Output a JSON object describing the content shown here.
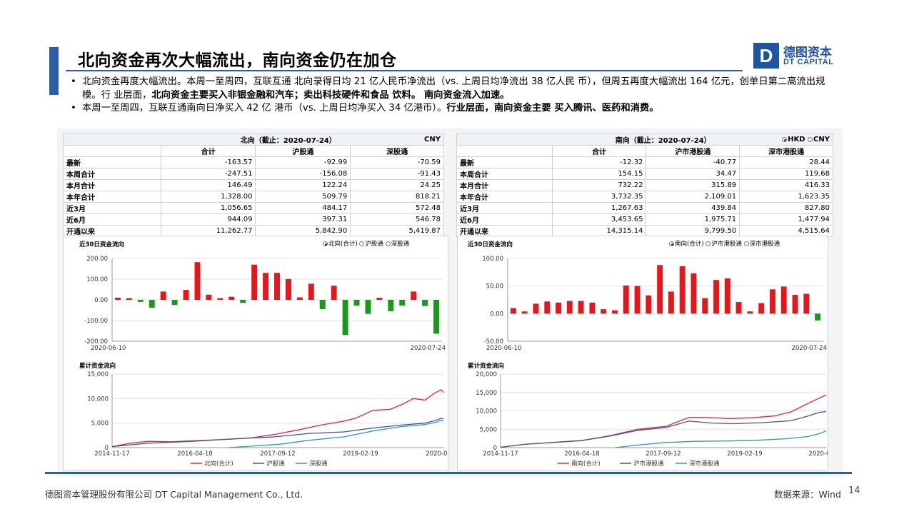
{
  "slide": {
    "title": "北向资金再次大幅流出，南向资金仍在加仓",
    "logo": {
      "mark": "D",
      "cn": "德图资本",
      "en": "DT CAPITAL"
    },
    "bullets": [
      {
        "segments": [
          {
            "text": "北向资金再度大幅流出。本周一至周四，互联互通 北向录得日均 21 亿人民币净流出（vs. 上周日均净流出 38 亿人民 币），但周五再度大幅流出 164 亿元，创单日第二高流出规模。行 业层面，",
            "bold": false
          },
          {
            "text": "北向资金主要买入非银金融和汽车；卖出科技硬件和食品 饮料。 南向资金流入加速。",
            "bold": true
          }
        ]
      },
      {
        "segments": [
          {
            "text": "本周一至周四，互联互通南向日净买入 42 亿 港币（vs. 上周日均净买入 34 亿港币）。",
            "bold": false
          },
          {
            "text": "行业层面，南向资金主要 买入腾讯、医药和消费。",
            "bold": true
          }
        ]
      }
    ],
    "footer_left": "德图资本管理股份有限公司  DT Capital Management  Co., Ltd.",
    "footer_right": "数据来源：Wind",
    "page_number": "14"
  },
  "north_table": {
    "title": "北向（截止：2020-07-24）",
    "currency": "CNY",
    "columns": [
      "合计",
      "沪股通",
      "深股通"
    ],
    "rows": [
      {
        "label": "最新",
        "values": [
          "-163.57",
          "-92.99",
          "-70.59"
        ]
      },
      {
        "label": "本周合计",
        "values": [
          "-247.51",
          "-156.08",
          "-91.43"
        ]
      },
      {
        "label": "本月合计",
        "values": [
          "146.49",
          "122.24",
          "24.25"
        ]
      },
      {
        "label": "本年合计",
        "values": [
          "1,328.00",
          "509.79",
          "818.21"
        ]
      },
      {
        "label": "近3月",
        "values": [
          "1,056.65",
          "484.17",
          "572.48"
        ]
      },
      {
        "label": "近6月",
        "values": [
          "944.09",
          "397.31",
          "546.78"
        ]
      },
      {
        "label": "开通以来",
        "values": [
          "11,262.77",
          "5,842.90",
          "5,419.87"
        ]
      }
    ]
  },
  "south_table": {
    "title": "南向（截止：2020-07-24）",
    "currency_options": [
      "HKD",
      "CNY"
    ],
    "currency_selected": "HKD",
    "columns": [
      "合计",
      "沪市港股通",
      "深市港股通"
    ],
    "rows": [
      {
        "label": "最新",
        "values": [
          "-12.32",
          "-40.77",
          "28.44"
        ]
      },
      {
        "label": "本周合计",
        "values": [
          "154.15",
          "34.47",
          "119.68"
        ]
      },
      {
        "label": "本月合计",
        "values": [
          "732.22",
          "315.89",
          "416.33"
        ]
      },
      {
        "label": "本年合计",
        "values": [
          "3,732.35",
          "2,109.01",
          "1,623.35"
        ]
      },
      {
        "label": "近3月",
        "values": [
          "1,267.63",
          "439.84",
          "827.80"
        ]
      },
      {
        "label": "近6月",
        "values": [
          "3,453.65",
          "1,975.71",
          "1,477.94"
        ]
      },
      {
        "label": "开通以来",
        "values": [
          "14,315.14",
          "9,799.50",
          "4,515.64"
        ]
      }
    ]
  },
  "north_daily_legend": {
    "title": "近30日资金流向",
    "options": [
      "北向(合计)",
      "沪股通",
      "深股通"
    ],
    "selected": "北向(合计)"
  },
  "south_daily_legend": {
    "title": "近30日资金流向",
    "options": [
      "南向(合计)",
      "沪市港股通",
      "深市港股通"
    ],
    "selected": "南向(合计)"
  },
  "north_cum_title": "累计资金流向",
  "south_cum_title": "累计资金流向",
  "chart_data": [
    {
      "id": "north_daily",
      "type": "bar",
      "x_start_label": "2020-06-10",
      "x_end_label": "2020-07-24",
      "ylim": [
        -200,
        200
      ],
      "yticks": [
        -200,
        -100,
        0,
        100,
        200
      ],
      "ytick_labels": [
        "-200.00",
        "-100.00",
        "0.00",
        "100.00",
        "200.00"
      ],
      "values": [
        10,
        8,
        -10,
        -38,
        40,
        -25,
        48,
        182,
        25,
        8,
        15,
        -15,
        170,
        130,
        130,
        100,
        12,
        78,
        -45,
        68,
        -170,
        -28,
        -68,
        10,
        -55,
        -28,
        40,
        -30,
        -163.57
      ],
      "positive_color": "#e8161b",
      "negative_color": "#1a9a1a"
    },
    {
      "id": "south_daily",
      "type": "bar",
      "x_start_label": "2020-06-10",
      "x_end_label": "2020-07-24",
      "ylim": [
        -50,
        100
      ],
      "yticks": [
        -50,
        0,
        50,
        100
      ],
      "ytick_labels": [
        "-50.00",
        "0.00",
        "50.00",
        "100.00"
      ],
      "values": [
        10,
        4,
        18,
        22,
        20,
        23,
        23,
        20,
        8,
        6,
        51,
        50,
        33,
        88,
        40,
        86,
        73,
        28,
        61,
        64,
        21,
        4,
        19,
        44,
        49,
        34,
        36,
        -12.32
      ],
      "positive_color": "#e8161b",
      "negative_color": "#1a9a1a"
    },
    {
      "id": "north_cumulative",
      "type": "line",
      "x_tick_labels": [
        "2014-11-17",
        "2016-04-18",
        "2017-09-12",
        "2019-02-19",
        "2020-07-21"
      ],
      "x_range": [
        2014.88,
        2020.62
      ],
      "ylim": [
        0,
        15000
      ],
      "yticks": [
        0,
        5000,
        10000,
        15000
      ],
      "ytick_labels": [
        "0",
        "5,000",
        "10,000",
        "15,000"
      ],
      "series": [
        {
          "name": "北向(合计)",
          "color": "#e8242a",
          "x": [
            2014.88,
            2015.2,
            2015.5,
            2015.9,
            2016.3,
            2016.9,
            2017.3,
            2017.7,
            2018.1,
            2018.5,
            2018.9,
            2019.1,
            2019.4,
            2019.7,
            2019.9,
            2020.1,
            2020.3,
            2020.45,
            2020.55,
            2020.58,
            2020.62
          ],
          "y": [
            200,
            900,
            1300,
            1200,
            1400,
            1700,
            2000,
            2700,
            3600,
            4600,
            5400,
            6000,
            7600,
            7800,
            8800,
            10000,
            9700,
            11000,
            11600,
            11800,
            11262.77
          ]
        },
        {
          "name": "沪股通",
          "color": "#3b56a4",
          "x": [
            2014.88,
            2015.5,
            2016.3,
            2017.0,
            2017.7,
            2018.3,
            2018.9,
            2019.4,
            2019.9,
            2020.3,
            2020.5,
            2020.58,
            2020.62
          ],
          "y": [
            200,
            900,
            1300,
            1800,
            2200,
            2900,
            3200,
            4000,
            4600,
            5000,
            5600,
            6000,
            5842.9
          ]
        },
        {
          "name": "深股通",
          "color": "#2a9ab0",
          "x": [
            2016.9,
            2017.3,
            2017.8,
            2018.3,
            2018.9,
            2019.4,
            2019.9,
            2020.3,
            2020.5,
            2020.58,
            2020.62
          ],
          "y": [
            0,
            300,
            700,
            1500,
            2200,
            3400,
            4300,
            4700,
            5200,
            5600,
            5419.87
          ]
        }
      ]
    },
    {
      "id": "south_cumulative",
      "type": "line",
      "x_tick_labels": [
        "2014-11-17",
        "2016-04-18",
        "2017-09-12",
        "2019-02-19",
        "2020-07-21"
      ],
      "x_range": [
        2014.88,
        2020.62
      ],
      "ylim": [
        0,
        20000
      ],
      "yticks": [
        0,
        5000,
        10000,
        15000,
        20000
      ],
      "ytick_labels": [
        "0",
        "5,000",
        "10,000",
        "15,000",
        "20,000"
      ],
      "series": [
        {
          "name": "南向(合计)",
          "color": "#e8242a",
          "x": [
            2014.88,
            2015.3,
            2015.8,
            2016.3,
            2016.8,
            2017.3,
            2017.8,
            2018.2,
            2018.5,
            2018.9,
            2019.3,
            2019.7,
            2020.0,
            2020.3,
            2020.5,
            2020.62
          ],
          "y": [
            100,
            900,
            1400,
            1900,
            3200,
            5000,
            5800,
            8200,
            8200,
            7900,
            8100,
            8600,
            9700,
            12000,
            13500,
            14315.14
          ]
        },
        {
          "name": "沪市港股通",
          "color": "#3b56a4",
          "x": [
            2014.88,
            2015.3,
            2015.8,
            2016.3,
            2016.8,
            2017.3,
            2017.8,
            2018.2,
            2018.6,
            2019.0,
            2019.5,
            2020.0,
            2020.3,
            2020.5,
            2020.62
          ],
          "y": [
            100,
            900,
            1400,
            1900,
            3100,
            4700,
            5500,
            7200,
            6700,
            6500,
            6800,
            7300,
            8600,
            9600,
            9799.5
          ]
        },
        {
          "name": "深市港股通",
          "color": "#2a9ab0",
          "x": [
            2016.9,
            2017.3,
            2017.8,
            2018.3,
            2018.9,
            2019.4,
            2019.9,
            2020.3,
            2020.5,
            2020.62
          ],
          "y": [
            0,
            700,
            1400,
            1700,
            1800,
            2000,
            2400,
            3000,
            3800,
            4515.64
          ]
        }
      ]
    }
  ]
}
